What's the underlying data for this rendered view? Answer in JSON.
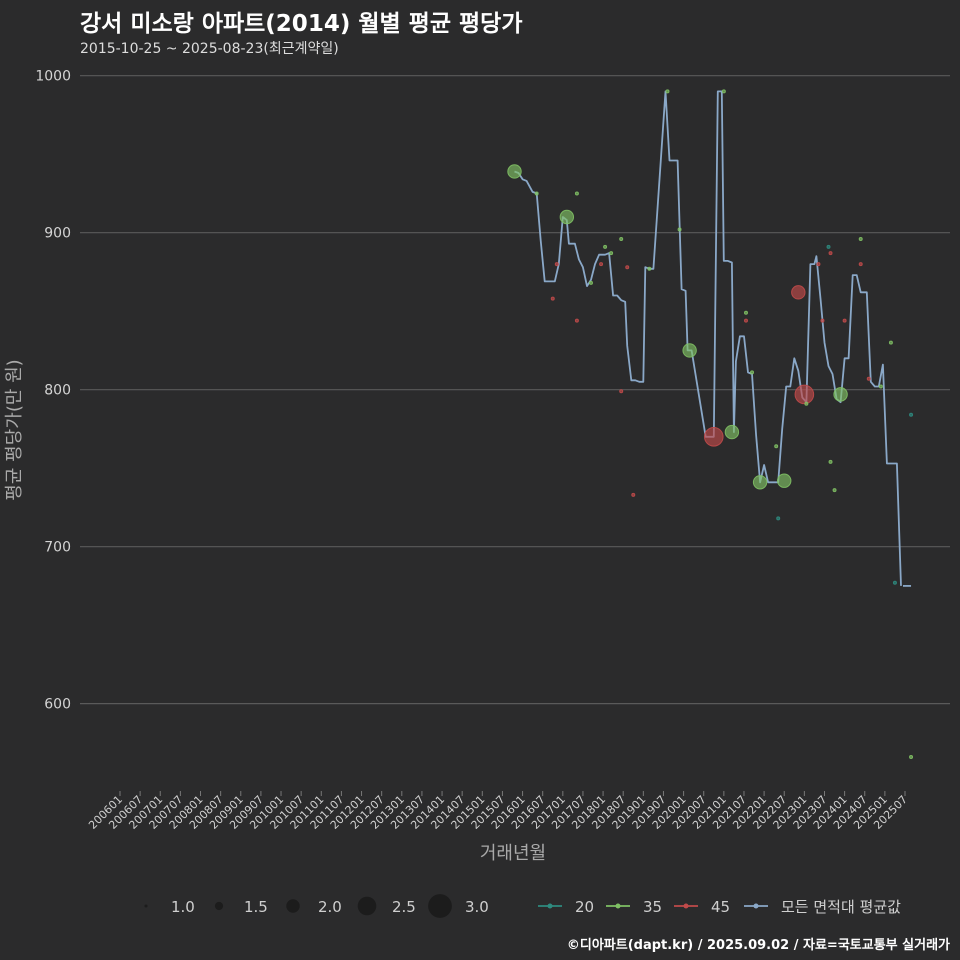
{
  "chart_data": {
    "type": "line",
    "title": "강서 미소랑 아파트(2014) 월별 평균 평당가",
    "subtitle": "2015-10-25 ~ 2025-08-23(최근계약일)",
    "xlabel": "거래년월",
    "ylabel": "평균 평당가(만 원)",
    "ylim": [
      545,
      1010
    ],
    "yticks": [
      600,
      700,
      800,
      900,
      1000
    ],
    "categories": [
      "200601",
      "200607",
      "200701",
      "200707",
      "200801",
      "200807",
      "200901",
      "200907",
      "201001",
      "201007",
      "201101",
      "201107",
      "201201",
      "201207",
      "201301",
      "201307",
      "201401",
      "201407",
      "201501",
      "201507",
      "201601",
      "201607",
      "201701",
      "201707",
      "201801",
      "201807",
      "201901",
      "201907",
      "202001",
      "202007",
      "202101",
      "202107",
      "202201",
      "202207",
      "202301",
      "202307",
      "202401",
      "202407",
      "202501",
      "202507"
    ],
    "grid": true,
    "legend_position": "bottom",
    "size_legend": {
      "values": [
        "1.0",
        "1.5",
        "2.0",
        "2.5",
        "3.0"
      ]
    },
    "color_legend": [
      {
        "name": "20",
        "color": "#2e8b7f"
      },
      {
        "name": "35",
        "color": "#7fc064"
      },
      {
        "name": "45",
        "color": "#c04a4a"
      },
      {
        "name": "모든 면적대 평균값",
        "color": "#8aa8c8"
      }
    ],
    "average_line": {
      "name": "모든 면적대 평균값",
      "points": [
        [
          2015.8,
          939
        ],
        [
          2015.9,
          938
        ],
        [
          2016.0,
          934
        ],
        [
          2016.1,
          933
        ],
        [
          2016.25,
          926
        ],
        [
          2016.35,
          925
        ],
        [
          2016.45,
          895
        ],
        [
          2016.55,
          869
        ],
        [
          2016.65,
          869
        ],
        [
          2016.8,
          869
        ],
        [
          2016.9,
          880
        ],
        [
          2017.0,
          910
        ],
        [
          2017.1,
          908
        ],
        [
          2017.15,
          893
        ],
        [
          2017.3,
          893
        ],
        [
          2017.4,
          883
        ],
        [
          2017.5,
          878
        ],
        [
          2017.6,
          866
        ],
        [
          2017.7,
          870
        ],
        [
          2017.8,
          880
        ],
        [
          2017.9,
          886
        ],
        [
          2018.05,
          886
        ],
        [
          2018.15,
          887
        ],
        [
          2018.25,
          860
        ],
        [
          2018.35,
          860
        ],
        [
          2018.45,
          857
        ],
        [
          2018.55,
          856
        ],
        [
          2018.6,
          828
        ],
        [
          2018.7,
          806
        ],
        [
          2018.8,
          806
        ],
        [
          2018.9,
          805
        ],
        [
          2019.0,
          805
        ],
        [
          2019.05,
          878
        ],
        [
          2019.15,
          877
        ],
        [
          2019.25,
          877
        ],
        [
          2019.55,
          990
        ],
        [
          2019.65,
          946
        ],
        [
          2019.75,
          946
        ],
        [
          2019.85,
          946
        ],
        [
          2019.95,
          864
        ],
        [
          2020.05,
          863
        ],
        [
          2020.1,
          825
        ],
        [
          2020.2,
          825
        ],
        [
          2020.55,
          770
        ],
        [
          2020.65,
          770
        ],
        [
          2020.75,
          770
        ],
        [
          2020.85,
          990
        ],
        [
          2020.95,
          990
        ],
        [
          2021.0,
          882
        ],
        [
          2021.1,
          882
        ],
        [
          2021.2,
          881
        ],
        [
          2021.25,
          773
        ],
        [
          2021.3,
          818
        ],
        [
          2021.4,
          834
        ],
        [
          2021.5,
          834
        ],
        [
          2021.6,
          811
        ],
        [
          2021.7,
          810
        ],
        [
          2021.8,
          771
        ],
        [
          2021.9,
          741
        ],
        [
          2022.0,
          752
        ],
        [
          2022.1,
          741
        ],
        [
          2022.2,
          741
        ],
        [
          2022.35,
          741
        ],
        [
          2022.45,
          775
        ],
        [
          2022.55,
          802
        ],
        [
          2022.65,
          802
        ],
        [
          2022.75,
          820
        ],
        [
          2022.85,
          812
        ],
        [
          2022.95,
          795
        ],
        [
          2023.05,
          792
        ],
        [
          2023.15,
          880
        ],
        [
          2023.25,
          880
        ],
        [
          2023.3,
          885
        ],
        [
          2023.4,
          858
        ],
        [
          2023.5,
          830
        ],
        [
          2023.6,
          815
        ],
        [
          2023.7,
          810
        ],
        [
          2023.8,
          794
        ],
        [
          2023.9,
          792
        ],
        [
          2024.0,
          820
        ],
        [
          2024.1,
          820
        ],
        [
          2024.2,
          873
        ],
        [
          2024.3,
          873
        ],
        [
          2024.4,
          862
        ],
        [
          2024.5,
          862
        ],
        [
          2024.55,
          862
        ],
        [
          2024.65,
          805
        ],
        [
          2024.75,
          802
        ],
        [
          2024.85,
          802
        ],
        [
          2024.95,
          816
        ],
        [
          2025.05,
          753
        ],
        [
          2025.15,
          753
        ],
        [
          2025.3,
          753
        ],
        [
          2025.4,
          675
        ]
      ],
      "tail_segment": [
        [
          2025.45,
          675
        ],
        [
          2025.65,
          675
        ]
      ]
    },
    "points": [
      {
        "x": 2015.8,
        "y": 939,
        "size": 2.0,
        "area": "35"
      },
      {
        "x": 2016.35,
        "y": 925,
        "size": 1.0,
        "area": "35"
      },
      {
        "x": 2016.75,
        "y": 858,
        "size": 1.0,
        "area": "45"
      },
      {
        "x": 2016.85,
        "y": 880,
        "size": 1.0,
        "area": "45"
      },
      {
        "x": 2017.1,
        "y": 910,
        "size": 2.0,
        "area": "35"
      },
      {
        "x": 2017.35,
        "y": 925,
        "size": 1.0,
        "area": "35"
      },
      {
        "x": 2017.35,
        "y": 844,
        "size": 1.0,
        "area": "45"
      },
      {
        "x": 2017.7,
        "y": 868,
        "size": 1.0,
        "area": "35"
      },
      {
        "x": 2017.95,
        "y": 880,
        "size": 1.0,
        "area": "45"
      },
      {
        "x": 2018.05,
        "y": 891,
        "size": 1.0,
        "area": "35"
      },
      {
        "x": 2018.2,
        "y": 887,
        "size": 1.0,
        "area": "35"
      },
      {
        "x": 2018.45,
        "y": 896,
        "size": 1.0,
        "area": "35"
      },
      {
        "x": 2018.45,
        "y": 799,
        "size": 1.0,
        "area": "45"
      },
      {
        "x": 2018.6,
        "y": 878,
        "size": 1.0,
        "area": "45"
      },
      {
        "x": 2018.75,
        "y": 733,
        "size": 1.0,
        "area": "45"
      },
      {
        "x": 2019.15,
        "y": 877,
        "size": 1.0,
        "area": "35"
      },
      {
        "x": 2019.6,
        "y": 990,
        "size": 1.0,
        "area": "35"
      },
      {
        "x": 2019.9,
        "y": 902,
        "size": 1.0,
        "area": "35"
      },
      {
        "x": 2020.15,
        "y": 825,
        "size": 2.0,
        "area": "35"
      },
      {
        "x": 2020.75,
        "y": 770,
        "size": 2.5,
        "area": "45"
      },
      {
        "x": 2021.0,
        "y": 990,
        "size": 1.0,
        "area": "35"
      },
      {
        "x": 2021.2,
        "y": 773,
        "size": 2.0,
        "area": "35"
      },
      {
        "x": 2021.55,
        "y": 849,
        "size": 1.0,
        "area": "35"
      },
      {
        "x": 2021.55,
        "y": 844,
        "size": 1.0,
        "area": "45"
      },
      {
        "x": 2021.7,
        "y": 811,
        "size": 1.0,
        "area": "35"
      },
      {
        "x": 2021.9,
        "y": 741,
        "size": 2.0,
        "area": "35"
      },
      {
        "x": 2022.3,
        "y": 764,
        "size": 1.0,
        "area": "35"
      },
      {
        "x": 2022.35,
        "y": 718,
        "size": 1.0,
        "area": "20"
      },
      {
        "x": 2022.5,
        "y": 742,
        "size": 2.0,
        "area": "35"
      },
      {
        "x": 2022.85,
        "y": 862,
        "size": 2.0,
        "area": "45"
      },
      {
        "x": 2023.0,
        "y": 797,
        "size": 2.5,
        "area": "45"
      },
      {
        "x": 2023.05,
        "y": 791,
        "size": 1.0,
        "area": "35"
      },
      {
        "x": 2023.35,
        "y": 880,
        "size": 1.0,
        "area": "45"
      },
      {
        "x": 2023.45,
        "y": 844,
        "size": 1.0,
        "area": "45"
      },
      {
        "x": 2023.6,
        "y": 891,
        "size": 1.0,
        "area": "20"
      },
      {
        "x": 2023.65,
        "y": 887,
        "size": 1.0,
        "area": "45"
      },
      {
        "x": 2023.65,
        "y": 754,
        "size": 1.0,
        "area": "35"
      },
      {
        "x": 2023.75,
        "y": 736,
        "size": 1.0,
        "area": "35"
      },
      {
        "x": 2023.9,
        "y": 797,
        "size": 2.0,
        "area": "35"
      },
      {
        "x": 2024.0,
        "y": 844,
        "size": 1.0,
        "area": "45"
      },
      {
        "x": 2024.4,
        "y": 896,
        "size": 1.0,
        "area": "35"
      },
      {
        "x": 2024.4,
        "y": 880,
        "size": 1.0,
        "area": "45"
      },
      {
        "x": 2024.6,
        "y": 807,
        "size": 1.0,
        "area": "45"
      },
      {
        "x": 2024.9,
        "y": 802,
        "size": 1.0,
        "area": "35"
      },
      {
        "x": 2025.15,
        "y": 830,
        "size": 1.0,
        "area": "35"
      },
      {
        "x": 2025.25,
        "y": 677,
        "size": 1.0,
        "area": "20"
      },
      {
        "x": 2025.65,
        "y": 784,
        "size": 1.0,
        "area": "20"
      },
      {
        "x": 2025.65,
        "y": 566,
        "size": 1.0,
        "area": "35"
      }
    ]
  },
  "footer": {
    "source": "©디아파트(dapt.kr) / 2025.09.02 / 자료=국토교통부 실거래가"
  }
}
